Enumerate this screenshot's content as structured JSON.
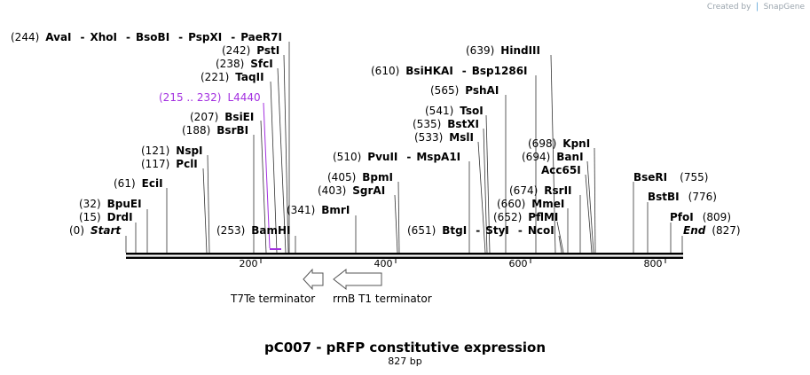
{
  "watermark": {
    "prefix": "Created by",
    "brand": "SnapGene"
  },
  "map": {
    "title": "pC007 - pRFP constitutive expression",
    "length_label": "827 bp",
    "start_label": "Start",
    "start_pos": "(0)",
    "end_label": "End",
    "end_pos": "(827)",
    "ticks": [
      "200",
      "400",
      "600",
      "800"
    ]
  },
  "sites": [
    {
      "id": "avai",
      "pos": "(244)",
      "name": "AvaI",
      "extras": [
        "XhoI",
        "BsoBI",
        "PspXI",
        "PaeR7I"
      ]
    },
    {
      "id": "psti",
      "pos": "(242)",
      "name": "PstI"
    },
    {
      "id": "sfci",
      "pos": "(238)",
      "name": "SfcI"
    },
    {
      "id": "taqii",
      "pos": "(221)",
      "name": "TaqII"
    },
    {
      "id": "l4440",
      "pos": "(215 .. 232)",
      "name": "L4440"
    },
    {
      "id": "bsiei",
      "pos": "(207)",
      "name": "BsiEI"
    },
    {
      "id": "bsrbi",
      "pos": "(188)",
      "name": "BsrBI"
    },
    {
      "id": "nspi",
      "pos": "(121)",
      "name": "NspI"
    },
    {
      "id": "pcli",
      "pos": "(117)",
      "name": "PclI"
    },
    {
      "id": "ecii",
      "pos": "(61)",
      "name": "EciI"
    },
    {
      "id": "bpuei",
      "pos": "(32)",
      "name": "BpuEI"
    },
    {
      "id": "drdi",
      "pos": "(15)",
      "name": "DrdI"
    },
    {
      "id": "bamhi",
      "pos": "(253)",
      "name": "BamHI"
    },
    {
      "id": "bmri",
      "pos": "(341)",
      "name": "BmrI"
    },
    {
      "id": "sgrai",
      "pos": "(403)",
      "name": "SgrAI"
    },
    {
      "id": "bpmi",
      "pos": "(405)",
      "name": "BpmI"
    },
    {
      "id": "pvuii",
      "pos": "(510)",
      "name": "PvuII",
      "extras": [
        "MspA1I"
      ]
    },
    {
      "id": "btgi",
      "pos": "(651)",
      "name": "BtgI",
      "extras": [
        "StyI",
        "NcoI"
      ]
    },
    {
      "id": "msli",
      "pos": "(533)",
      "name": "MslI"
    },
    {
      "id": "bstxi",
      "pos": "(535)",
      "name": "BstXI"
    },
    {
      "id": "tsoi",
      "pos": "(541)",
      "name": "TsoI"
    },
    {
      "id": "pshai",
      "pos": "(565)",
      "name": "PshAI"
    },
    {
      "id": "bsihkai",
      "pos": "(610)",
      "name": "BsiHKAI",
      "extras": [
        "Bsp1286I"
      ]
    },
    {
      "id": "hindiii",
      "pos": "(639)",
      "name": "HindIII"
    },
    {
      "id": "pflmi",
      "pos": "(652)",
      "name": "PflMI"
    },
    {
      "id": "mmei",
      "pos": "(660)",
      "name": "MmeI"
    },
    {
      "id": "rsrii",
      "pos": "(674)",
      "name": "RsrII"
    },
    {
      "id": "acc65i",
      "name": "Acc65I"
    },
    {
      "id": "bani",
      "pos": "(694)",
      "name": "BanI"
    },
    {
      "id": "kpni",
      "pos": "(698)",
      "name": "KpnI"
    },
    {
      "id": "pfoi",
      "name": "PfoI",
      "pos": "(809)"
    },
    {
      "id": "bstbi",
      "name": "BstBI",
      "pos": "(776)"
    },
    {
      "id": "bseri",
      "name": "BseRI",
      "pos": "(755)"
    }
  ],
  "features": [
    {
      "id": "t7te",
      "label": "T7Te terminator"
    },
    {
      "id": "rrnb",
      "label": "rrnB T1 terminator"
    }
  ],
  "colors": {
    "feature_purple": "#a330e0",
    "backbone": "#000000",
    "arrow_fill": "#ffffff"
  }
}
